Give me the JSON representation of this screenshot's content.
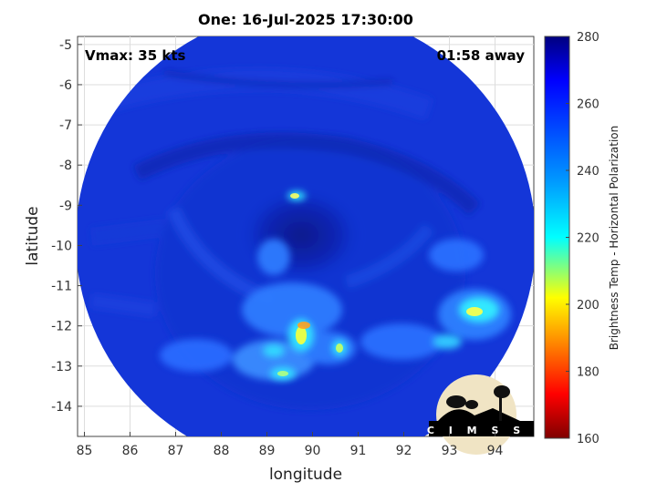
{
  "header": {
    "title": "One: 16-Jul-2025 17:30:00"
  },
  "annotations": {
    "vmax": "Vmax: 35 kts",
    "time_away": "01:58 away"
  },
  "axes": {
    "xlabel": "longitude",
    "ylabel": "latitude",
    "xticks": [
      "85",
      "86",
      "87",
      "88",
      "89",
      "90",
      "91",
      "92",
      "93",
      "94"
    ],
    "yticks": [
      "-5",
      "-6",
      "-7",
      "-8",
      "-9",
      "-10",
      "-11",
      "-12",
      "-13",
      "-14"
    ],
    "xrange": [
      84.85,
      94.85
    ],
    "yrange": [
      -14.75,
      -4.8
    ]
  },
  "colorbar": {
    "label": "Brightness Temp - Horizontal Polarization",
    "ticks": [
      "280",
      "260",
      "240",
      "220",
      "200",
      "180",
      "160"
    ],
    "range": [
      160,
      280
    ],
    "colormap": "jet"
  },
  "logo": {
    "text": "CIMSS"
  },
  "colors": {
    "background_blue": "#1436d8",
    "deep_blue": "#0a1a9a",
    "storm_core": "#0a1a8c"
  }
}
